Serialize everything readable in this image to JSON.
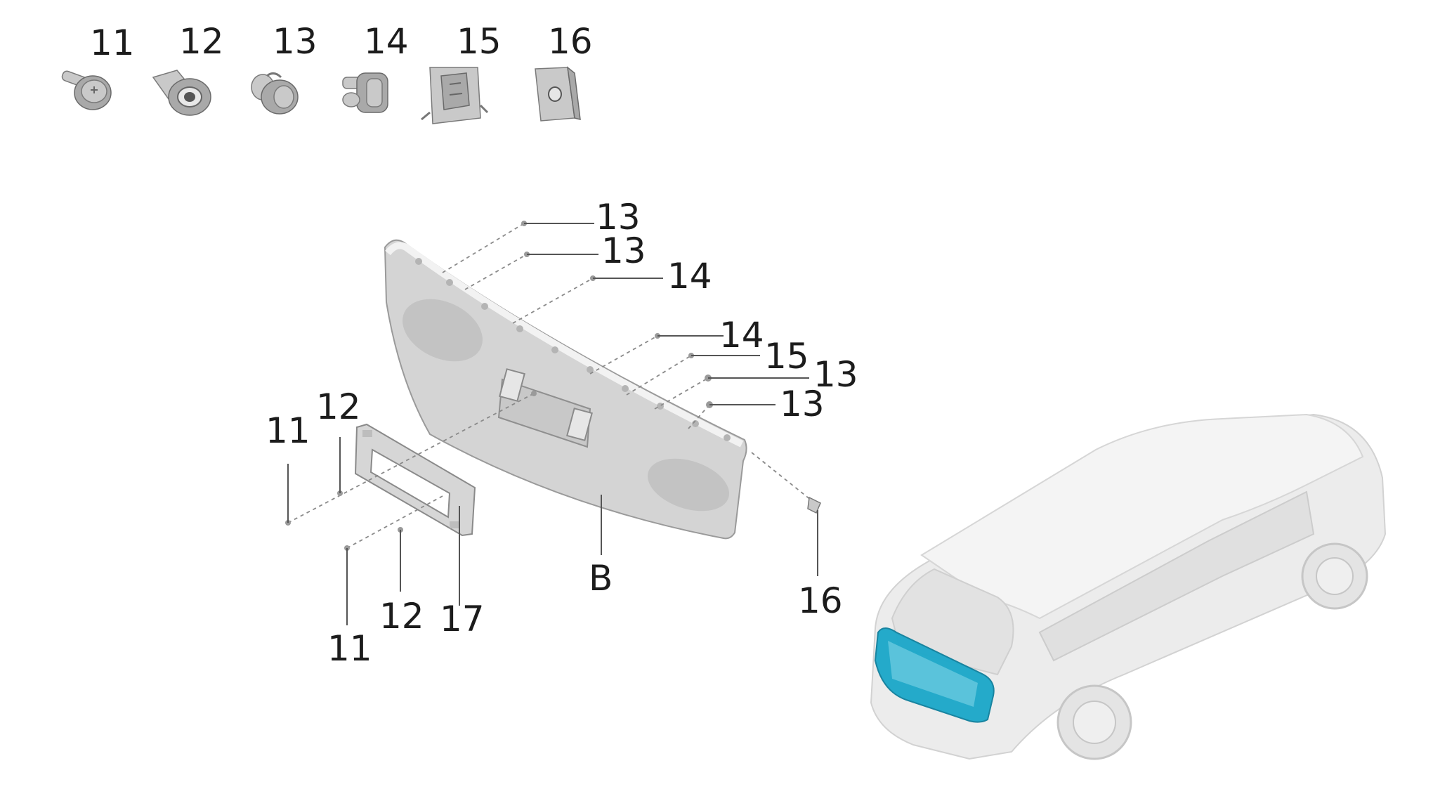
{
  "legend": {
    "parts": [
      {
        "number": "11",
        "icon": "flange-screw-icon"
      },
      {
        "number": "12",
        "icon": "bushing-nut-icon"
      },
      {
        "number": "13",
        "icon": "push-clip-icon"
      },
      {
        "number": "14",
        "icon": "stud-clip-icon"
      },
      {
        "number": "15",
        "icon": "spring-clip-icon"
      },
      {
        "number": "16",
        "icon": "clip-nut-icon"
      }
    ]
  },
  "callouts": {
    "c13a": "13",
    "c13b": "13",
    "c14a": "14",
    "c14b": "14",
    "c15": "15",
    "c13c": "13",
    "c13d": "13",
    "c12a": "12",
    "c11a": "11",
    "c16": "16",
    "cB": "B",
    "c12b": "12",
    "c17": "17",
    "c11b": "11"
  },
  "colors": {
    "highlight": "#1aa7c9",
    "vehicle": "#ececec",
    "panel": "#d4d4d4"
  }
}
